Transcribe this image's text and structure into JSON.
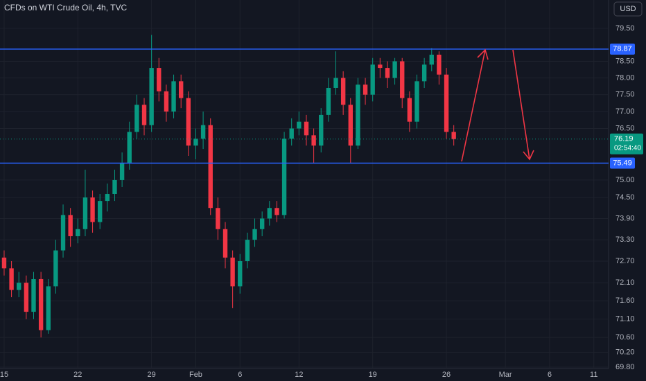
{
  "chart_data": {
    "type": "candlestick",
    "title": "CFDs on WTI Crude Oil, 4h, TVC",
    "currency": "USD",
    "log": true,
    "grid": true,
    "up_color": "#089981",
    "down_color": "#f23645",
    "x": [
      0,
      0.5,
      1,
      1.5,
      2,
      2.5,
      3,
      3.5,
      4,
      4.5,
      5,
      5.5,
      6,
      6.5,
      7,
      7.5,
      8,
      8.5,
      9,
      9.5,
      10,
      10.5,
      11,
      11.5,
      12,
      12.5,
      13,
      13.5,
      14,
      14.5,
      15,
      15.5,
      16,
      16.5,
      17,
      17.5,
      18,
      18.5,
      19,
      19.5,
      20,
      20.5,
      21,
      21.5,
      22,
      22.5,
      23,
      23.5,
      24,
      24.5,
      25,
      25.5,
      26,
      26.5,
      27,
      27.5,
      28,
      28.5,
      29,
      29.5,
      30,
      30.5
    ],
    "open": [
      72.8,
      72.5,
      71.9,
      72.1,
      71.3,
      72.2,
      70.8,
      72.0,
      73.0,
      74.0,
      73.4,
      73.6,
      74.5,
      73.8,
      74.4,
      74.6,
      75.0,
      75.5,
      76.4,
      77.2,
      76.6,
      78.3,
      77.6,
      77.0,
      77.9,
      77.4,
      76.0,
      76.2,
      76.6,
      74.2,
      73.6,
      72.8,
      72.0,
      72.7,
      73.3,
      73.6,
      73.9,
      74.2,
      74.0,
      76.2,
      76.5,
      76.7,
      76.3,
      76.0,
      76.9,
      77.7,
      78.0,
      77.2,
      76.0,
      77.8,
      77.5,
      78.4,
      78.3,
      78.0,
      78.5,
      77.4,
      76.7,
      77.9,
      78.4,
      78.7,
      78.1,
      76.4
    ],
    "high": [
      73.0,
      72.7,
      72.4,
      72.3,
      72.4,
      72.4,
      72.2,
      73.3,
      74.3,
      74.2,
      73.9,
      75.3,
      74.7,
      74.6,
      74.9,
      75.3,
      75.8,
      76.7,
      77.5,
      77.4,
      79.3,
      78.6,
      77.8,
      78.1,
      78.1,
      77.6,
      76.5,
      77.0,
      76.8,
      74.5,
      73.8,
      73.0,
      72.9,
      73.5,
      73.9,
      74.1,
      74.4,
      74.4,
      76.4,
      76.8,
      77.0,
      76.9,
      76.5,
      77.1,
      78.0,
      78.8,
      78.2,
      77.4,
      78.0,
      78.0,
      78.6,
      78.6,
      78.5,
      78.6,
      78.6,
      77.6,
      78.1,
      78.6,
      78.9,
      78.8,
      78.3,
      76.6
    ],
    "low": [
      72.3,
      71.7,
      71.7,
      71.1,
      71.1,
      70.6,
      70.7,
      71.8,
      72.8,
      73.1,
      73.2,
      73.4,
      73.5,
      73.6,
      74.1,
      74.4,
      74.8,
      75.3,
      76.2,
      76.3,
      76.4,
      77.3,
      76.7,
      76.8,
      77.1,
      75.7,
      75.6,
      75.9,
      74.0,
      73.3,
      72.5,
      71.4,
      71.8,
      72.5,
      73.1,
      73.4,
      73.7,
      73.8,
      73.9,
      76.0,
      76.3,
      76.0,
      75.5,
      75.8,
      76.7,
      77.5,
      76.9,
      75.5,
      75.9,
      77.2,
      77.3,
      78.0,
      77.7,
      77.8,
      77.1,
      76.4,
      76.5,
      77.7,
      78.2,
      77.8,
      76.2,
      76.0
    ],
    "close": [
      72.5,
      71.9,
      72.1,
      71.3,
      72.2,
      70.8,
      72.0,
      73.0,
      74.0,
      73.4,
      73.6,
      74.5,
      73.8,
      74.4,
      74.6,
      75.0,
      75.5,
      76.4,
      77.2,
      76.6,
      78.3,
      77.6,
      77.0,
      77.9,
      77.4,
      76.0,
      76.2,
      76.6,
      74.2,
      73.6,
      72.8,
      72.0,
      72.7,
      73.3,
      73.6,
      73.9,
      74.2,
      74.0,
      76.2,
      76.5,
      76.7,
      76.3,
      76.0,
      76.9,
      77.7,
      78.0,
      77.2,
      76.0,
      77.8,
      77.5,
      78.4,
      78.3,
      78.0,
      78.5,
      77.4,
      76.7,
      77.9,
      78.4,
      78.7,
      78.1,
      76.4,
      76.19
    ],
    "xlim": [
      -0.28,
      41.0
    ],
    "xticks": [
      {
        "value": 0,
        "label": "15"
      },
      {
        "value": 5,
        "label": "22"
      },
      {
        "value": 10,
        "label": "29"
      },
      {
        "value": 13,
        "label": "Feb"
      },
      {
        "value": 16,
        "label": "6"
      },
      {
        "value": 20,
        "label": "12"
      },
      {
        "value": 25,
        "label": "19"
      },
      {
        "value": 30,
        "label": "26"
      },
      {
        "value": 34,
        "label": "Mar"
      },
      {
        "value": 37,
        "label": "6"
      },
      {
        "value": 40,
        "label": "11"
      }
    ],
    "ylim": [
      69.8,
      80.37
    ],
    "yticks": [
      {
        "value": 79.5,
        "label": "79.50"
      },
      {
        "value": 78.5,
        "label": "78.50"
      },
      {
        "value": 78,
        "label": "78.00"
      },
      {
        "value": 77.5,
        "label": "77.50"
      },
      {
        "value": 77,
        "label": "77.00"
      },
      {
        "value": 76.5,
        "label": "76.50"
      },
      {
        "value": 75,
        "label": "75.00"
      },
      {
        "value": 74.5,
        "label": "74.50"
      },
      {
        "value": 73.9,
        "label": "73.90"
      },
      {
        "value": 73.3,
        "label": "73.30"
      },
      {
        "value": 72.7,
        "label": "72.70"
      },
      {
        "value": 72.1,
        "label": "72.10"
      },
      {
        "value": 71.6,
        "label": "71.60"
      },
      {
        "value": 71.1,
        "label": "71.10"
      },
      {
        "value": 70.6,
        "label": "70.60"
      },
      {
        "value": 70.2,
        "label": "70.20"
      },
      {
        "value": 69.8,
        "label": "69.80"
      }
    ],
    "levels": [
      {
        "value": 78.87,
        "color": "#2962ff"
      },
      {
        "value": 75.49,
        "color": "#2962ff"
      }
    ],
    "last_price": {
      "value": 76.19,
      "countdown": "02:54:40",
      "color": "#089981"
    }
  }
}
